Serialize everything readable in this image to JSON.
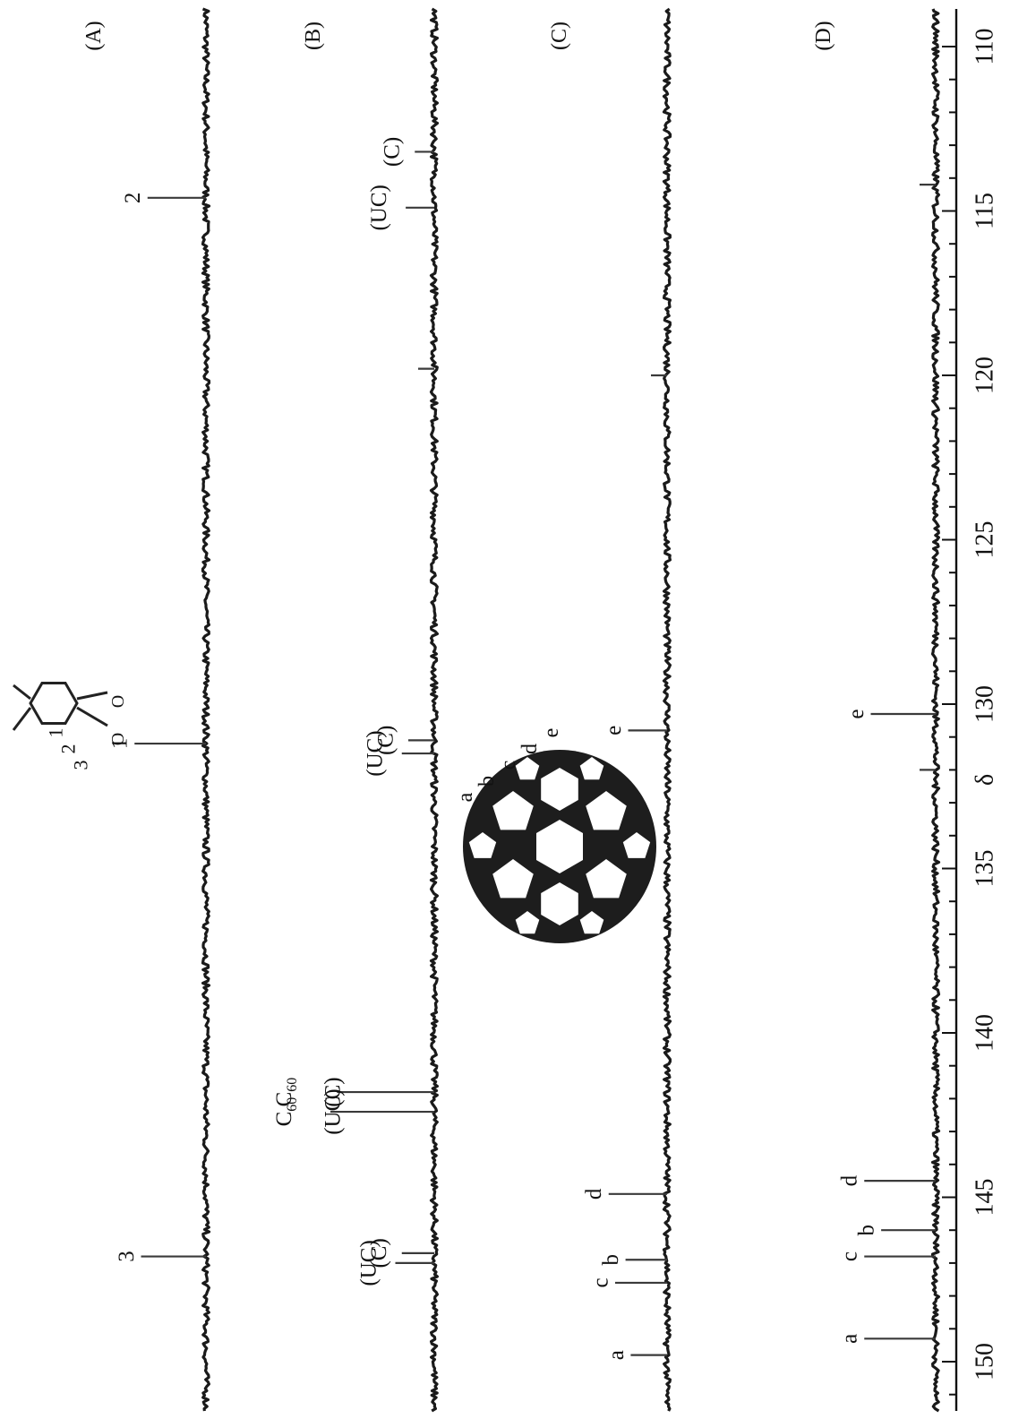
{
  "chart_data": {
    "type": "line",
    "title": "",
    "xlabel": "δ",
    "ylabel": "",
    "x_reversed": true,
    "xlim": [
      110,
      150
    ],
    "xticks": [
      110,
      115,
      120,
      125,
      130,
      135,
      140,
      145,
      150
    ],
    "orientation": "rotated 90° clockwise (δ axis runs along the right edge)",
    "spectra": [
      {
        "panel": "(A)",
        "peaks": [
          {
            "x": 114.6,
            "intensity": 0.45,
            "label": "2"
          },
          {
            "x": 131.2,
            "intensity": 0.55,
            "label": "1"
          },
          {
            "x": 146.8,
            "intensity": 0.5,
            "label": "3"
          }
        ]
      },
      {
        "panel": "(B)",
        "peaks": [
          {
            "x": 114.9,
            "intensity": 0.22,
            "label": "(UC)"
          },
          {
            "x": 113.2,
            "intensity": 0.15,
            "label": "(C)"
          },
          {
            "x": 131.5,
            "intensity": 0.25,
            "label": "(UC)"
          },
          {
            "x": 131.1,
            "intensity": 0.2,
            "label": "(C)"
          },
          {
            "x": 142.4,
            "intensity": 0.8,
            "label": "C60 (UC)"
          },
          {
            "x": 141.8,
            "intensity": 0.75,
            "label": "C60 (C)"
          },
          {
            "x": 147.0,
            "intensity": 0.3,
            "label": "(UC)"
          },
          {
            "x": 146.7,
            "intensity": 0.25,
            "label": "(C)"
          }
        ]
      },
      {
        "panel": "(C)",
        "peaks": [
          {
            "x": 130.8,
            "intensity": 0.3,
            "label": "e"
          },
          {
            "x": 144.9,
            "intensity": 0.45,
            "label": "d"
          },
          {
            "x": 146.9,
            "intensity": 0.32,
            "label": "b"
          },
          {
            "x": 147.6,
            "intensity": 0.4,
            "label": "c"
          },
          {
            "x": 149.8,
            "intensity": 0.28,
            "label": "a"
          }
        ]
      },
      {
        "panel": "(D)",
        "peaks": [
          {
            "x": 130.3,
            "intensity": 0.5,
            "label": "e"
          },
          {
            "x": 144.5,
            "intensity": 0.55,
            "label": "d"
          },
          {
            "x": 146.0,
            "intensity": 0.42,
            "label": "b"
          },
          {
            "x": 146.8,
            "intensity": 0.55,
            "label": "c"
          },
          {
            "x": 149.3,
            "intensity": 0.55,
            "label": "a"
          }
        ]
      }
    ],
    "unlabeled_peaks": [
      {
        "panel": "(B)",
        "x": 119.8
      },
      {
        "panel": "(C)",
        "x": 120.0
      },
      {
        "panel": "(D)",
        "x": 114.2
      },
      {
        "panel": "(D)",
        "x": 132.0
      }
    ],
    "inset_labels": {
      "molecule_numbers": [
        "1",
        "2",
        "3"
      ],
      "fullerene_positions": [
        "a",
        "b",
        "c",
        "d",
        "e"
      ]
    },
    "colors": {
      "trace": "#1a1a1a",
      "background": "#ffffff"
    }
  }
}
